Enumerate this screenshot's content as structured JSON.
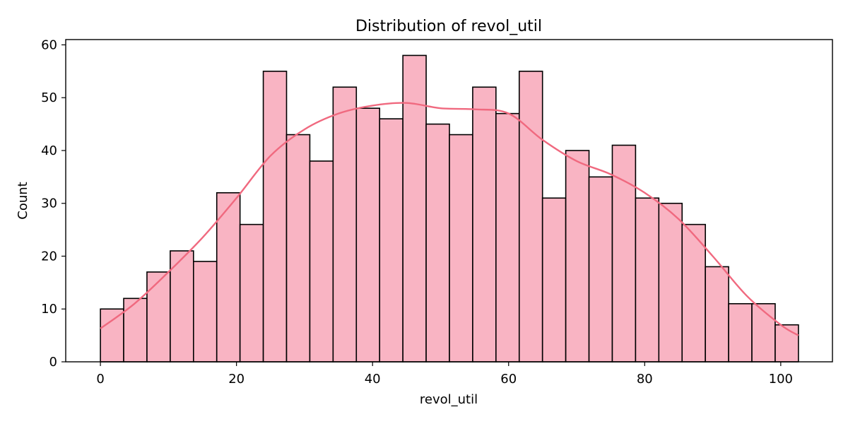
{
  "chart_data": {
    "type": "bar",
    "title": "Distribution of revol_util",
    "xlabel": "revol_util",
    "ylabel": "Count",
    "xlim": [
      -5.1,
      107.6
    ],
    "ylim": [
      0,
      61
    ],
    "x_ticks": [
      0,
      20,
      40,
      60,
      80,
      100
    ],
    "y_ticks": [
      0,
      10,
      20,
      30,
      40,
      50,
      60
    ],
    "bin_start": 0,
    "bin_width": 3.42,
    "values": [
      10,
      12,
      17,
      21,
      19,
      32,
      26,
      55,
      43,
      38,
      52,
      48,
      46,
      58,
      45,
      43,
      52,
      47,
      55,
      31,
      40,
      35,
      41,
      31,
      30,
      26,
      18,
      11,
      11,
      7
    ],
    "kde": {
      "x": [
        0,
        5,
        10,
        15,
        20,
        25,
        30,
        35,
        40,
        45,
        50,
        55,
        60,
        65,
        70,
        75,
        80,
        85,
        90,
        95,
        100,
        102.6
      ],
      "y": [
        6.3,
        11,
        17,
        23.5,
        31,
        39,
        44,
        47,
        48.5,
        49,
        48,
        47.8,
        47,
        42,
        38,
        35.5,
        32,
        27,
        20,
        12.5,
        7,
        5
      ]
    },
    "grid": false,
    "colors": {
      "bar_fill": "#f9b4c3",
      "bar_edge": "#000000",
      "kde_line": "#f0697f"
    }
  }
}
